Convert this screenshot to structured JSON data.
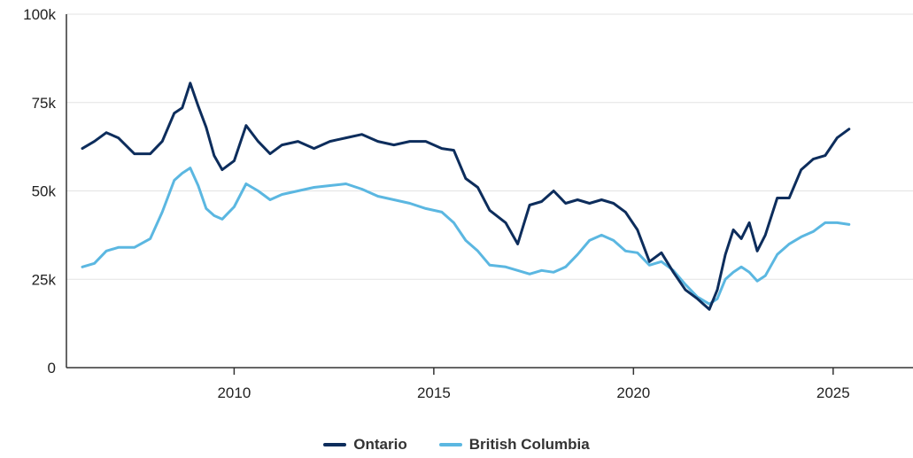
{
  "chart_data": {
    "type": "line",
    "ylim": [
      0,
      100000
    ],
    "xlim": [
      2005.8,
      2027.0
    ],
    "y_ticks": [
      0,
      25000,
      50000,
      75000,
      100000
    ],
    "y_tick_labels": [
      "0",
      "25k",
      "50k",
      "75k",
      "100k"
    ],
    "x_ticks": [
      2010,
      2015,
      2020,
      2025
    ],
    "x_tick_labels": [
      "2010",
      "2015",
      "2020",
      "2025"
    ],
    "grid": "horizontal",
    "legend_position": "bottom-center",
    "series": [
      {
        "name": "Ontario",
        "color": "#0d2d5c",
        "x": [
          2006.2,
          2006.5,
          2006.8,
          2007.1,
          2007.5,
          2007.9,
          2008.2,
          2008.5,
          2008.7,
          2008.9,
          2009.1,
          2009.3,
          2009.5,
          2009.7,
          2010.0,
          2010.3,
          2010.6,
          2010.9,
          2011.2,
          2011.6,
          2012.0,
          2012.4,
          2012.8,
          2013.2,
          2013.6,
          2014.0,
          2014.4,
          2014.8,
          2015.2,
          2015.5,
          2015.8,
          2016.1,
          2016.4,
          2016.8,
          2017.1,
          2017.4,
          2017.7,
          2018.0,
          2018.3,
          2018.6,
          2018.9,
          2019.2,
          2019.5,
          2019.8,
          2020.1,
          2020.4,
          2020.7,
          2021.0,
          2021.3,
          2021.6,
          2021.9,
          2022.1,
          2022.3,
          2022.5,
          2022.7,
          2022.9,
          2023.1,
          2023.3,
          2023.6,
          2023.9,
          2024.2,
          2024.5,
          2024.8,
          2025.1,
          2025.4
        ],
        "values": [
          62000,
          64000,
          66500,
          65000,
          60500,
          60500,
          64000,
          72000,
          73500,
          80500,
          74000,
          68000,
          60000,
          56000,
          58500,
          68500,
          64000,
          60500,
          63000,
          64000,
          62000,
          64000,
          65000,
          66000,
          64000,
          63000,
          64000,
          64000,
          62000,
          61500,
          53500,
          51000,
          44500,
          41000,
          35000,
          46000,
          47000,
          50000,
          46500,
          47500,
          46500,
          47500,
          46500,
          44000,
          39000,
          30000,
          32500,
          27000,
          22000,
          19500,
          16500,
          22000,
          32000,
          39000,
          36500,
          41000,
          33000,
          37500,
          48000,
          48000,
          56000,
          59000,
          60000,
          65000,
          67500
        ]
      },
      {
        "name": "British Columbia",
        "color": "#5bb7e1",
        "x": [
          2006.2,
          2006.5,
          2006.8,
          2007.1,
          2007.5,
          2007.9,
          2008.2,
          2008.5,
          2008.7,
          2008.9,
          2009.1,
          2009.3,
          2009.5,
          2009.7,
          2010.0,
          2010.3,
          2010.6,
          2010.9,
          2011.2,
          2011.6,
          2012.0,
          2012.4,
          2012.8,
          2013.2,
          2013.6,
          2014.0,
          2014.4,
          2014.8,
          2015.2,
          2015.5,
          2015.8,
          2016.1,
          2016.4,
          2016.8,
          2017.1,
          2017.4,
          2017.7,
          2018.0,
          2018.3,
          2018.6,
          2018.9,
          2019.2,
          2019.5,
          2019.8,
          2020.1,
          2020.4,
          2020.7,
          2021.0,
          2021.3,
          2021.6,
          2021.9,
          2022.1,
          2022.3,
          2022.5,
          2022.7,
          2022.9,
          2023.1,
          2023.3,
          2023.6,
          2023.9,
          2024.2,
          2024.5,
          2024.8,
          2025.1,
          2025.4
        ],
        "values": [
          28500,
          29500,
          33000,
          34000,
          34000,
          36500,
          44000,
          53000,
          55000,
          56500,
          51500,
          45000,
          43000,
          42000,
          45500,
          52000,
          50000,
          47500,
          49000,
          50000,
          51000,
          51500,
          52000,
          50500,
          48500,
          47500,
          46500,
          45000,
          44000,
          41000,
          36000,
          33000,
          29000,
          28500,
          27500,
          26500,
          27500,
          27000,
          28500,
          32000,
          36000,
          37500,
          36000,
          33000,
          32500,
          29000,
          30000,
          27500,
          23500,
          20000,
          18000,
          19500,
          25000,
          27000,
          28500,
          27000,
          24500,
          26000,
          32000,
          35000,
          37000,
          38500,
          41000,
          41000,
          40500
        ]
      }
    ]
  }
}
